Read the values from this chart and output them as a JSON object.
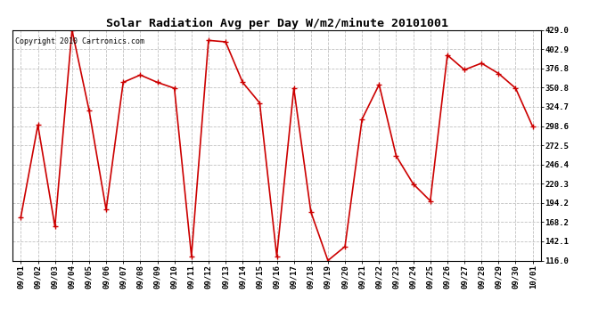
{
  "title": "Solar Radiation Avg per Day W/m2/minute 20101001",
  "copyright": "Copyright 2010 Cartronics.com",
  "dates": [
    "09/01",
    "09/02",
    "09/03",
    "09/04",
    "09/05",
    "09/06",
    "09/07",
    "09/08",
    "09/09",
    "09/10",
    "09/11",
    "09/12",
    "09/13",
    "09/14",
    "09/15",
    "09/16",
    "09/17",
    "09/18",
    "09/19",
    "09/20",
    "09/21",
    "09/22",
    "09/23",
    "09/24",
    "09/25",
    "09/26",
    "09/27",
    "09/28",
    "09/29",
    "09/30",
    "10/01"
  ],
  "values": [
    175,
    300,
    162,
    429,
    320,
    185,
    358,
    368,
    358,
    350,
    122,
    415,
    413,
    358,
    330,
    122,
    350,
    182,
    116,
    135,
    308,
    355,
    258,
    220,
    197,
    395,
    375,
    384,
    370,
    350,
    298
  ],
  "line_color": "#cc0000",
  "marker_color": "#cc0000",
  "bg_color": "#ffffff",
  "grid_color": "#c0c0c0",
  "title_fontsize": 9.5,
  "copyright_fontsize": 6,
  "tick_fontsize": 6.5,
  "ylim_min": 116.0,
  "ylim_max": 429.0,
  "yticks": [
    116.0,
    142.1,
    168.2,
    194.2,
    220.3,
    246.4,
    272.5,
    298.6,
    324.7,
    350.8,
    376.8,
    402.9,
    429.0
  ]
}
